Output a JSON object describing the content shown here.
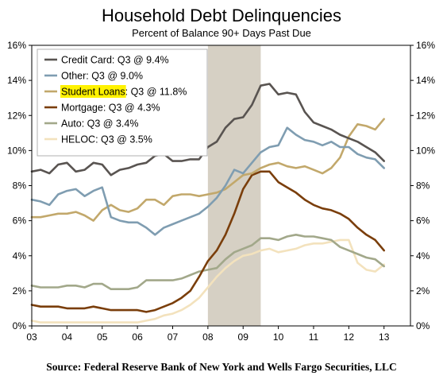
{
  "title": "Household Debt Delinquencies",
  "subtitle": "Percent of Balance 90+ Days Past Due",
  "source": "Source: Federal Reserve Bank of New York and Wells Fargo Securities, LLC",
  "colors": {
    "recession": "#d6d0c4",
    "credit_card": "#595451",
    "other": "#7f9db1",
    "student_loans": "#c2a86b",
    "mortgage": "#7a3e0b",
    "auto": "#a2a88a",
    "heloc": "#f3e2bd",
    "highlight": "#fff200"
  },
  "chart_data": {
    "type": "line",
    "x_start_year": 2003,
    "x_end_year": 2013.75,
    "x_tick_labels": [
      "03",
      "04",
      "05",
      "06",
      "07",
      "08",
      "09",
      "10",
      "11",
      "12",
      "13"
    ],
    "ylim": [
      0,
      16
    ],
    "y_ticks": [
      "0%",
      "2%",
      "4%",
      "6%",
      "8%",
      "10%",
      "12%",
      "14%",
      "16%"
    ],
    "recession": [
      2008.0,
      2009.5
    ],
    "legend_position": "top-left",
    "series": [
      {
        "key": "credit_card",
        "name": "Credit Card: Q3 @ 9.4%",
        "highlight": false,
        "values": [
          8.8,
          8.9,
          8.7,
          9.2,
          9.3,
          8.8,
          8.9,
          9.3,
          9.2,
          8.6,
          8.9,
          9.0,
          9.2,
          9.3,
          9.7,
          9.8,
          9.4,
          9.4,
          9.5,
          9.5,
          10.2,
          10.5,
          11.3,
          11.8,
          11.9,
          12.6,
          13.7,
          13.8,
          13.2,
          13.3,
          13.2,
          12.2,
          11.6,
          11.4,
          11.2,
          10.9,
          10.7,
          10.5,
          10.2,
          9.9,
          9.4
        ]
      },
      {
        "key": "other",
        "name": "Other: Q3 @ 9.0%",
        "highlight": false,
        "values": [
          7.2,
          7.1,
          6.9,
          7.5,
          7.7,
          7.8,
          7.4,
          7.7,
          7.9,
          6.2,
          6.0,
          5.9,
          5.9,
          5.6,
          5.2,
          5.6,
          5.8,
          6.0,
          6.2,
          6.4,
          6.8,
          7.3,
          8.0,
          8.9,
          8.7,
          9.3,
          9.9,
          10.2,
          10.3,
          11.3,
          10.9,
          10.6,
          10.5,
          10.3,
          10.5,
          10.2,
          10.2,
          9.8,
          9.6,
          9.5,
          9.0
        ]
      },
      {
        "key": "student_loans",
        "name": "Student Loans: Q3 @ 11.8%",
        "highlight": true,
        "values": [
          6.2,
          6.2,
          6.3,
          6.4,
          6.4,
          6.5,
          6.3,
          6.0,
          6.6,
          6.9,
          6.6,
          6.5,
          6.7,
          7.2,
          7.2,
          6.9,
          7.4,
          7.5,
          7.5,
          7.4,
          7.5,
          7.6,
          7.8,
          8.2,
          8.6,
          8.7,
          9.0,
          9.2,
          9.3,
          9.1,
          9.0,
          9.1,
          8.9,
          8.7,
          9.0,
          9.6,
          10.8,
          11.5,
          11.4,
          11.2,
          11.8
        ]
      },
      {
        "key": "mortgage",
        "name": "Mortgage: Q3 @ 4.3%",
        "highlight": false,
        "values": [
          1.2,
          1.1,
          1.1,
          1.1,
          1.0,
          1.0,
          1.0,
          1.1,
          1.0,
          0.9,
          0.9,
          0.9,
          0.9,
          0.8,
          0.9,
          1.1,
          1.3,
          1.6,
          2.0,
          2.8,
          3.7,
          4.3,
          5.2,
          6.4,
          7.8,
          8.6,
          8.8,
          8.8,
          8.2,
          7.9,
          7.6,
          7.2,
          6.9,
          6.7,
          6.6,
          6.4,
          6.1,
          5.6,
          5.2,
          4.9,
          4.3
        ]
      },
      {
        "key": "auto",
        "name": "Auto: Q3 @ 3.4%",
        "highlight": false,
        "values": [
          2.3,
          2.2,
          2.2,
          2.2,
          2.3,
          2.3,
          2.2,
          2.4,
          2.4,
          2.1,
          2.1,
          2.1,
          2.2,
          2.6,
          2.6,
          2.6,
          2.6,
          2.7,
          2.9,
          3.1,
          3.2,
          3.3,
          3.8,
          4.2,
          4.4,
          4.6,
          5.0,
          5.0,
          4.9,
          5.1,
          5.2,
          5.1,
          5.1,
          5.0,
          4.9,
          4.5,
          4.3,
          4.1,
          3.9,
          3.8,
          3.4
        ]
      },
      {
        "key": "heloc",
        "name": "HELOC: Q3 @ 3.5%",
        "highlight": false,
        "values": [
          0.3,
          0.2,
          0.2,
          0.2,
          0.2,
          0.2,
          0.2,
          0.2,
          0.2,
          0.2,
          0.2,
          0.2,
          0.2,
          0.3,
          0.4,
          0.6,
          0.7,
          0.9,
          1.2,
          1.6,
          2.2,
          2.8,
          3.3,
          3.7,
          4.0,
          4.1,
          4.3,
          4.4,
          4.2,
          4.3,
          4.4,
          4.6,
          4.7,
          4.7,
          4.8,
          4.9,
          4.9,
          3.6,
          3.2,
          3.1,
          3.5
        ]
      }
    ]
  }
}
